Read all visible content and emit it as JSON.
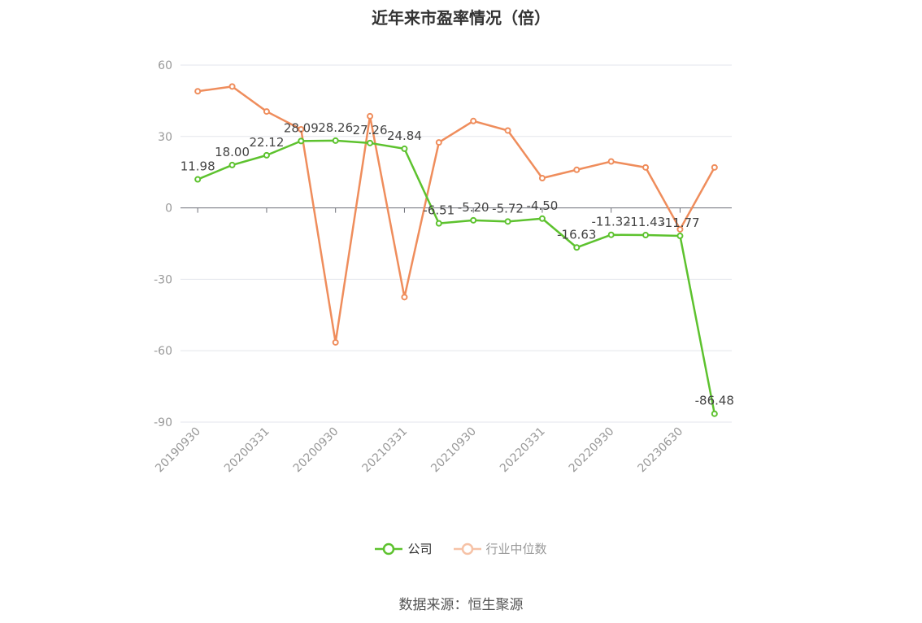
{
  "title": "近年来市盈率情况（倍）",
  "source": "数据来源：恒生聚源",
  "colors": {
    "company": "#5dc22e",
    "industry": "#ef8d5c",
    "industry_legend": "#f6c2a6"
  },
  "legend": [
    {
      "name": "公司",
      "active": true
    },
    {
      "name": "行业中位数",
      "active": false
    }
  ],
  "chart_data": {
    "type": "line",
    "title": "近年来市盈率情况（倍）",
    "xlabel": "",
    "ylabel": "",
    "ylim": [
      -90,
      60
    ],
    "yticks": [
      60,
      30,
      0,
      -30,
      -60,
      -90
    ],
    "x_tick_labels": [
      "20190930",
      "20200331",
      "20200930",
      "20210331",
      "20210930",
      "20220331",
      "20220930",
      "20230630"
    ],
    "x_tick_positions": [
      0,
      2,
      4,
      6,
      8,
      10,
      12,
      14
    ],
    "grid": true,
    "legend_position": "bottom",
    "point_count": 16,
    "series": [
      {
        "name": "公司",
        "values": [
          11.98,
          18.0,
          22.12,
          28.09,
          28.26,
          27.26,
          24.84,
          -6.51,
          -5.2,
          -5.72,
          -4.5,
          -16.63,
          -11.32,
          -11.43,
          -11.77,
          -86.48
        ],
        "labels": [
          "11.98",
          "18.00",
          "22.12",
          "28.09",
          "28.26",
          "27.26",
          "24.84",
          "-6.51",
          "-5.20",
          "-5.72",
          "-4.50",
          "-16.63",
          "-11.32",
          "-11.43",
          "-11.77",
          "-86.48"
        ]
      },
      {
        "name": "行业中位数",
        "values": [
          49,
          51,
          40.5,
          33,
          -56.5,
          38.5,
          -37.5,
          27.5,
          36.5,
          32.5,
          12.5,
          16,
          19.5,
          17,
          -9,
          17
        ]
      }
    ]
  }
}
